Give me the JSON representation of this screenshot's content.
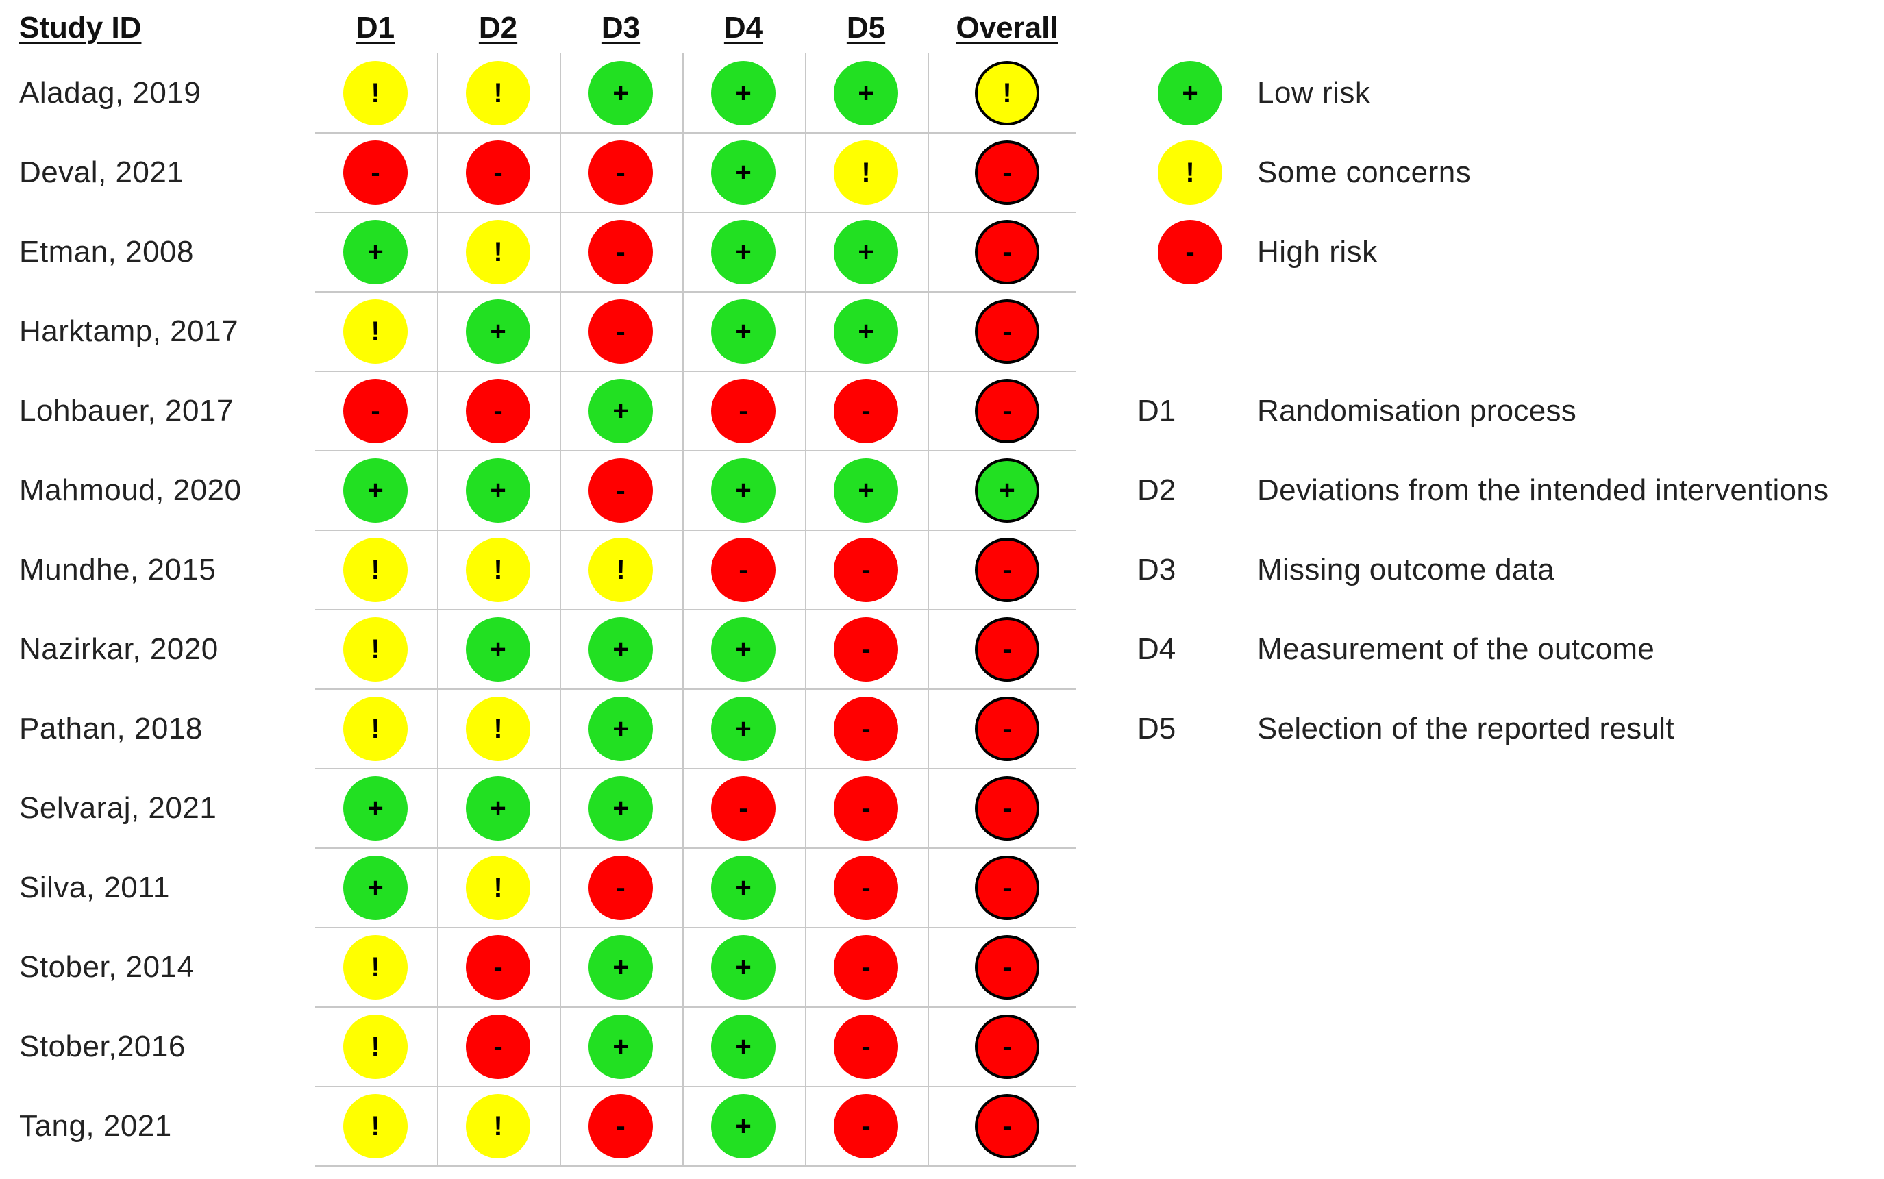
{
  "chart_data": {
    "type": "table",
    "header": {
      "study": "Study ID",
      "columns": [
        "D1",
        "D2",
        "D3",
        "D4",
        "D5",
        "Overall"
      ]
    },
    "judgements": {
      "low": {
        "symbol": "+",
        "color": "#22e022",
        "label": "Low risk"
      },
      "some": {
        "symbol": "!",
        "color": "#ffff00",
        "label": "Some concerns"
      },
      "high": {
        "symbol": "-",
        "color": "#ff0000",
        "label": "High risk"
      }
    },
    "rows": [
      {
        "study": "Aladag, 2019",
        "values": [
          "some",
          "some",
          "low",
          "low",
          "low",
          "some"
        ]
      },
      {
        "study": "Deval, 2021",
        "values": [
          "high",
          "high",
          "high",
          "low",
          "some",
          "high"
        ]
      },
      {
        "study": "Etman, 2008",
        "values": [
          "low",
          "some",
          "high",
          "low",
          "low",
          "high"
        ]
      },
      {
        "study": "Harktamp, 2017",
        "values": [
          "some",
          "low",
          "high",
          "low",
          "low",
          "high"
        ]
      },
      {
        "study": "Lohbauer, 2017",
        "values": [
          "high",
          "high",
          "low",
          "high",
          "high",
          "high"
        ]
      },
      {
        "study": "Mahmoud, 2020",
        "values": [
          "low",
          "low",
          "high",
          "low",
          "low",
          "low"
        ]
      },
      {
        "study": "Mundhe, 2015",
        "values": [
          "some",
          "some",
          "some",
          "high",
          "high",
          "high"
        ]
      },
      {
        "study": "Nazirkar, 2020",
        "values": [
          "some",
          "low",
          "low",
          "low",
          "high",
          "high"
        ]
      },
      {
        "study": "Pathan, 2018",
        "values": [
          "some",
          "some",
          "low",
          "low",
          "high",
          "high"
        ]
      },
      {
        "study": "Selvaraj, 2021",
        "values": [
          "low",
          "low",
          "low",
          "high",
          "high",
          "high"
        ]
      },
      {
        "study": "Silva, 2011",
        "values": [
          "low",
          "some",
          "high",
          "low",
          "high",
          "high"
        ]
      },
      {
        "study": "Stober, 2014",
        "values": [
          "some",
          "high",
          "low",
          "low",
          "high",
          "high"
        ]
      },
      {
        "study": "Stober,2016",
        "values": [
          "some",
          "high",
          "low",
          "low",
          "high",
          "high"
        ]
      },
      {
        "study": "Tang, 2021",
        "values": [
          "some",
          "some",
          "high",
          "low",
          "high",
          "high"
        ]
      }
    ],
    "legend": [
      "low",
      "some",
      "high"
    ],
    "domains": [
      {
        "code": "D1",
        "text": "Randomisation process"
      },
      {
        "code": "D2",
        "text": "Deviations from the intended interventions"
      },
      {
        "code": "D3",
        "text": "Missing outcome data"
      },
      {
        "code": "D4",
        "text": "Measurement of the outcome"
      },
      {
        "code": "D5",
        "text": "Selection of the reported result"
      }
    ]
  }
}
